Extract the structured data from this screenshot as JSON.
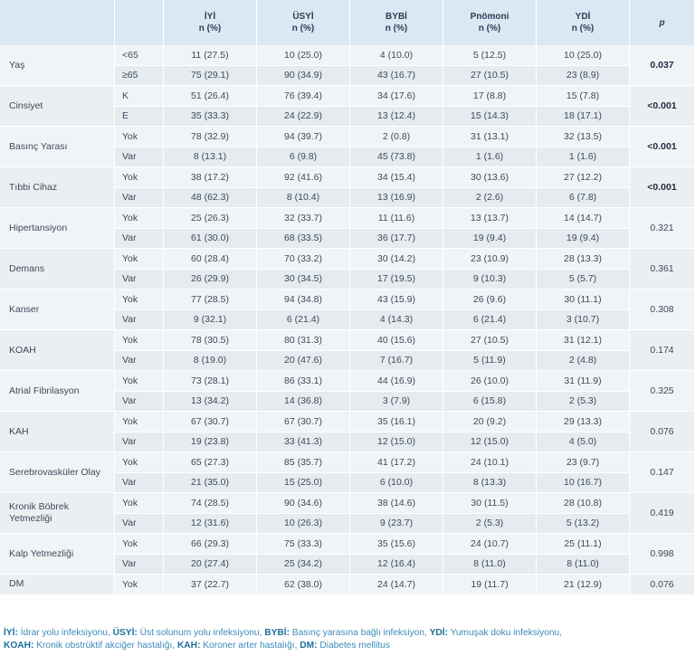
{
  "headers": [
    {
      "abbr": "İYİ",
      "sub": "n (%)"
    },
    {
      "abbr": "ÜSYİ",
      "sub": "n (%)"
    },
    {
      "abbr": "BYBİ",
      "sub": "n (%)"
    },
    {
      "abbr": "Pnömoni",
      "sub": "n (%)"
    },
    {
      "abbr": "YDİ",
      "sub": "n (%)"
    }
  ],
  "p_header": "p",
  "groups": [
    {
      "label": "Yaş",
      "p": "0.037",
      "p_bold": true,
      "rows": [
        {
          "sub": "<65",
          "v": [
            "11 (27.5)",
            "10 (25.0)",
            "4 (10.0)",
            "5 (12.5)",
            "10 (25.0)"
          ]
        },
        {
          "sub": "≥65",
          "v": [
            "75 (29.1)",
            "90 (34.9)",
            "43 (16.7)",
            "27 (10.5)",
            "23 (8.9)"
          ]
        }
      ]
    },
    {
      "label": "Cinsiyet",
      "p": "<0.001",
      "p_bold": true,
      "rows": [
        {
          "sub": "K",
          "v": [
            "51 (26.4)",
            "76 (39.4)",
            "34 (17.6)",
            "17 (8.8)",
            "15 (7.8)"
          ]
        },
        {
          "sub": "E",
          "v": [
            "35 (33.3)",
            "24 (22.9)",
            "13 (12.4)",
            "15 (14.3)",
            "18 (17.1)"
          ]
        }
      ]
    },
    {
      "label": "Basınç Yarası",
      "p": "<0.001",
      "p_bold": true,
      "rows": [
        {
          "sub": "Yok",
          "v": [
            "78 (32.9)",
            "94 (39.7)",
            "2 (0.8)",
            "31 (13.1)",
            "32 (13.5)"
          ]
        },
        {
          "sub": "Var",
          "v": [
            "8 (13.1)",
            "6 (9.8)",
            "45 (73.8)",
            "1 (1.6)",
            "1 (1.6)"
          ]
        }
      ]
    },
    {
      "label": "Tıbbi Cihaz",
      "p": "<0.001",
      "p_bold": true,
      "rows": [
        {
          "sub": "Yok",
          "v": [
            "38 (17.2)",
            "92 (41.6)",
            "34 (15.4)",
            "30 (13.6)",
            "27 (12.2)"
          ]
        },
        {
          "sub": "Var",
          "v": [
            "48 (62.3)",
            "8 (10.4)",
            "13 (16.9)",
            "2 (2.6)",
            "6 (7.8)"
          ]
        }
      ]
    },
    {
      "label": "Hipertansiyon",
      "p": "0.321",
      "p_bold": false,
      "rows": [
        {
          "sub": "Yok",
          "v": [
            "25 (26.3)",
            "32 (33.7)",
            "11 (11.6)",
            "13 (13.7)",
            "14 (14.7)"
          ]
        },
        {
          "sub": "Var",
          "v": [
            "61 (30.0)",
            "68 (33.5)",
            "36 (17.7)",
            "19 (9.4)",
            "19 (9.4)"
          ]
        }
      ]
    },
    {
      "label": "Demans",
      "p": "0.361",
      "p_bold": false,
      "rows": [
        {
          "sub": "Yok",
          "v": [
            "60 (28.4)",
            "70 (33.2)",
            "30 (14.2)",
            "23 (10.9)",
            "28 (13.3)"
          ]
        },
        {
          "sub": "Var",
          "v": [
            "26 (29.9)",
            "30 (34.5)",
            "17 (19.5)",
            "9 (10.3)",
            "5 (5.7)"
          ]
        }
      ]
    },
    {
      "label": "Kanser",
      "p": "0.308",
      "p_bold": false,
      "rows": [
        {
          "sub": "Yok",
          "v": [
            "77 (28.5)",
            "94 (34.8)",
            "43 (15.9)",
            "26 (9.6)",
            "30 (11.1)"
          ]
        },
        {
          "sub": "Var",
          "v": [
            "9 (32.1)",
            "6 (21.4)",
            "4 (14.3)",
            "6 (21.4)",
            "3 (10.7)"
          ]
        }
      ]
    },
    {
      "label": "KOAH",
      "p": "0.174",
      "p_bold": false,
      "rows": [
        {
          "sub": "Yok",
          "v": [
            "78 (30.5)",
            "80 (31.3)",
            "40 (15.6)",
            "27 (10.5)",
            "31 (12.1)"
          ]
        },
        {
          "sub": "Var",
          "v": [
            "8 (19.0)",
            "20 (47.6)",
            "7 (16.7)",
            "5 (11.9)",
            "2 (4.8)"
          ]
        }
      ]
    },
    {
      "label": "Atrial Fibrilasyon",
      "p": "0.325",
      "p_bold": false,
      "rows": [
        {
          "sub": "Yok",
          "v": [
            "73 (28.1)",
            "86 (33.1)",
            "44 (16.9)",
            "26 (10.0)",
            "31 (11.9)"
          ]
        },
        {
          "sub": "Var",
          "v": [
            "13 (34.2)",
            "14 (36.8)",
            "3 (7.9)",
            "6 (15.8)",
            "2 (5.3)"
          ]
        }
      ]
    },
    {
      "label": "KAH",
      "p": "0.076",
      "p_bold": false,
      "rows": [
        {
          "sub": "Yok",
          "v": [
            "67 (30.7)",
            "67 (30.7)",
            "35 (16.1)",
            "20 (9.2)",
            "29 (13.3)"
          ]
        },
        {
          "sub": "Var",
          "v": [
            "19 (23.8)",
            "33 (41.3)",
            "12 (15.0)",
            "12 (15.0)",
            "4 (5.0)"
          ]
        }
      ]
    },
    {
      "label": "Serebrovasküler Olay",
      "p": "0.147",
      "p_bold": false,
      "rows": [
        {
          "sub": "Yok",
          "v": [
            "65 (27.3)",
            "85 (35.7)",
            "41 (17.2)",
            "24 (10.1)",
            "23 (9.7)"
          ]
        },
        {
          "sub": "Var",
          "v": [
            "21 (35.0)",
            "15 (25.0)",
            "6 (10.0)",
            "8 (13.3)",
            "10 (16.7)"
          ]
        }
      ]
    },
    {
      "label": "Kronik Böbrek Yetmezliği",
      "p": "0.419",
      "p_bold": false,
      "rows": [
        {
          "sub": "Yok",
          "v": [
            "74 (28.5)",
            "90 (34.6)",
            "38 (14.6)",
            "30 (11.5)",
            "28 (10.8)"
          ]
        },
        {
          "sub": "Var",
          "v": [
            "12 (31.6)",
            "10 (26.3)",
            "9 (23.7)",
            "2 (5.3)",
            "5 (13.2)"
          ]
        }
      ]
    },
    {
      "label": "Kalp Yetmezliği",
      "p": "0.998",
      "p_bold": false,
      "rows": [
        {
          "sub": "Yok",
          "v": [
            "66 (29.3)",
            "75 (33.3)",
            "35 (15.6)",
            "24 (10.7)",
            "25 (11.1)"
          ]
        },
        {
          "sub": "Var",
          "v": [
            "20 (27.4)",
            "25 (34.2)",
            "12 (16.4)",
            "8 (11.0)",
            "8 (11.0)"
          ]
        }
      ]
    },
    {
      "label": "DM",
      "p": "0.076",
      "p_bold": false,
      "rows": [
        {
          "sub": "Yok",
          "v": [
            "37 (22.7)",
            "62 (38.0)",
            "24 (14.7)",
            "19 (11.7)",
            "21 (12.9)"
          ]
        }
      ]
    }
  ],
  "legend": [
    [
      {
        "abbr": "İYİ:",
        "text": " İdrar yolu infeksiyonu, "
      },
      {
        "abbr": "ÜSYİ:",
        "text": " Üst solunum yolu infeksiyonu, "
      },
      {
        "abbr": "BYBİ:",
        "text": " Basınç yarasına bağlı infeksiyon, "
      },
      {
        "abbr": "YDİ:",
        "text": " Yumuşak doku infeksiyonu,"
      }
    ],
    [
      {
        "abbr": "KOAH:",
        "text": " Kronik obstrüktif akciğer hastalığı, "
      },
      {
        "abbr": "KAH:",
        "text": " Koroner arter hastalığı, "
      },
      {
        "abbr": "DM:",
        "text": " Diabetes mellitus"
      }
    ]
  ]
}
